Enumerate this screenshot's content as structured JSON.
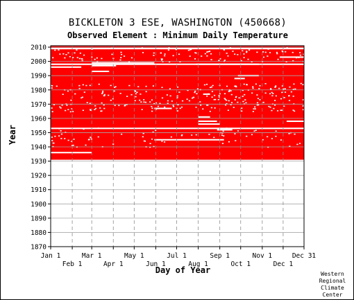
{
  "chart_data": {
    "type": "heatmap",
    "title": "BICKLETON 3 ESE, WASHINGTON   (450668)",
    "subtitle": "Observed Element : Minimum Daily Temperature",
    "xlabel": "Day of Year",
    "ylabel": "Year",
    "x_ticks_top": [
      "Jan 1",
      "Mar 1",
      "May 1",
      "Jul 1",
      "Sep 1",
      "Nov 1",
      "Dec 31"
    ],
    "x_ticks_bottom": [
      "Feb 1",
      "Apr 1",
      "Jun 1",
      "Aug 1",
      "Oct 1",
      "Dec 1"
    ],
    "x_tick_days_top": [
      1,
      60,
      121,
      182,
      244,
      305,
      365
    ],
    "x_tick_days_bottom": [
      32,
      91,
      152,
      213,
      274,
      335
    ],
    "xlim": [
      1,
      365
    ],
    "y_ticks": [
      1870,
      1880,
      1890,
      1900,
      1910,
      1920,
      1930,
      1940,
      1950,
      1960,
      1970,
      1980,
      1990,
      2000,
      2010
    ],
    "ylim": [
      1870,
      2011
    ],
    "data_years": [
      1931,
      2011
    ],
    "data_color": "#ff0000",
    "missing_color": "#ffffff",
    "grid": true,
    "missing_segments": [
      {
        "year": 2009,
        "start": 1,
        "end": 365
      },
      {
        "year": 1998,
        "start": 1,
        "end": 365
      },
      {
        "year": 1996,
        "start": 1,
        "end": 45
      },
      {
        "year": 1997,
        "start": 60,
        "end": 95
      },
      {
        "year": 1999,
        "start": 60,
        "end": 150
      },
      {
        "year": 1993,
        "start": 60,
        "end": 85
      },
      {
        "year": 1998,
        "start": 210,
        "end": 300
      },
      {
        "year": 2003,
        "start": 330,
        "end": 365
      },
      {
        "year": 1990,
        "start": 270,
        "end": 300
      },
      {
        "year": 1988,
        "start": 265,
        "end": 280
      },
      {
        "year": 1967,
        "start": 150,
        "end": 175
      },
      {
        "year": 1961,
        "start": 213,
        "end": 230
      },
      {
        "year": 1958,
        "start": 213,
        "end": 240
      },
      {
        "year": 1956,
        "start": 213,
        "end": 244
      },
      {
        "year": 1953,
        "start": 1,
        "end": 365
      },
      {
        "year": 1952,
        "start": 240,
        "end": 262
      },
      {
        "year": 1958,
        "start": 340,
        "end": 365
      },
      {
        "year": 1945,
        "start": 150,
        "end": 250
      },
      {
        "year": 1936,
        "start": 1,
        "end": 60
      },
      {
        "year": 1977,
        "start": 220,
        "end": 230
      }
    ]
  },
  "credit": "Western Regional Climate Center"
}
